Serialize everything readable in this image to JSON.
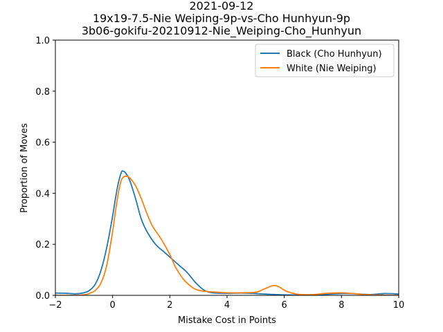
{
  "chart_data": {
    "type": "line",
    "title_lines": [
      "2021-09-12",
      "19x19-7.5-Nie Weiping-9p-vs-Cho Hunhyun-9p",
      "3b06-gokifu-20210912-Nie_Weiping-Cho_Hunhyun"
    ],
    "xlabel": "Mistake Cost in Points",
    "ylabel": "Proportion of Moves",
    "xlim": [
      -2,
      10
    ],
    "ylim": [
      0,
      1.0
    ],
    "xticks": [
      -2,
      0,
      2,
      4,
      6,
      8,
      10
    ],
    "yticks": [
      0.0,
      0.2,
      0.4,
      0.6,
      0.8,
      1.0
    ],
    "xtick_labels": [
      "−2",
      "0",
      "2",
      "4",
      "6",
      "8",
      "10"
    ],
    "ytick_labels": [
      "0.0",
      "0.2",
      "0.4",
      "0.6",
      "0.8",
      "1.0"
    ],
    "grid": false,
    "legend_position": "upper right",
    "series": [
      {
        "name": "Black (Cho Hunhyun)",
        "color": "#1f77b4",
        "points": [
          [
            -2.0,
            0.009
          ],
          [
            -1.6,
            0.008
          ],
          [
            -1.3,
            0.006
          ],
          [
            -1.0,
            0.01
          ],
          [
            -0.8,
            0.02
          ],
          [
            -0.6,
            0.045
          ],
          [
            -0.4,
            0.1
          ],
          [
            -0.2,
            0.19
          ],
          [
            0.0,
            0.31
          ],
          [
            0.1,
            0.38
          ],
          [
            0.2,
            0.44
          ],
          [
            0.3,
            0.48
          ],
          [
            0.35,
            0.487
          ],
          [
            0.45,
            0.48
          ],
          [
            0.6,
            0.45
          ],
          [
            0.8,
            0.38
          ],
          [
            1.0,
            0.3
          ],
          [
            1.2,
            0.25
          ],
          [
            1.5,
            0.2
          ],
          [
            1.8,
            0.17
          ],
          [
            2.0,
            0.15
          ],
          [
            2.3,
            0.12
          ],
          [
            2.6,
            0.09
          ],
          [
            2.9,
            0.05
          ],
          [
            3.2,
            0.02
          ],
          [
            3.5,
            0.01
          ],
          [
            4.0,
            0.008
          ],
          [
            4.5,
            0.009
          ],
          [
            5.0,
            0.007
          ],
          [
            5.5,
            0.004
          ],
          [
            6.0,
            0.002
          ],
          [
            7.0,
            0.001
          ],
          [
            7.5,
            0.004
          ],
          [
            8.0,
            0.007
          ],
          [
            8.5,
            0.006
          ],
          [
            9.0,
            0.003
          ],
          [
            9.5,
            0.007
          ],
          [
            10.0,
            0.005
          ]
        ]
      },
      {
        "name": "White (Nie Weiping)",
        "color": "#ff7f0e",
        "points": [
          [
            -2.0,
            0.0
          ],
          [
            -1.5,
            0.0
          ],
          [
            -1.0,
            0.002
          ],
          [
            -0.8,
            0.008
          ],
          [
            -0.6,
            0.02
          ],
          [
            -0.4,
            0.05
          ],
          [
            -0.2,
            0.12
          ],
          [
            0.0,
            0.25
          ],
          [
            0.1,
            0.33
          ],
          [
            0.2,
            0.4
          ],
          [
            0.3,
            0.45
          ],
          [
            0.4,
            0.465
          ],
          [
            0.5,
            0.466
          ],
          [
            0.6,
            0.46
          ],
          [
            0.8,
            0.43
          ],
          [
            1.0,
            0.38
          ],
          [
            1.2,
            0.32
          ],
          [
            1.4,
            0.27
          ],
          [
            1.7,
            0.22
          ],
          [
            2.0,
            0.16
          ],
          [
            2.2,
            0.11
          ],
          [
            2.5,
            0.06
          ],
          [
            2.8,
            0.03
          ],
          [
            3.0,
            0.02
          ],
          [
            3.3,
            0.015
          ],
          [
            3.7,
            0.012
          ],
          [
            4.0,
            0.01
          ],
          [
            4.5,
            0.01
          ],
          [
            5.0,
            0.012
          ],
          [
            5.3,
            0.025
          ],
          [
            5.6,
            0.038
          ],
          [
            5.8,
            0.034
          ],
          [
            6.1,
            0.015
          ],
          [
            6.5,
            0.004
          ],
          [
            7.0,
            0.003
          ],
          [
            7.5,
            0.008
          ],
          [
            8.0,
            0.01
          ],
          [
            8.5,
            0.006
          ],
          [
            9.0,
            0.002
          ],
          [
            10.0,
            0.0
          ]
        ]
      }
    ]
  }
}
